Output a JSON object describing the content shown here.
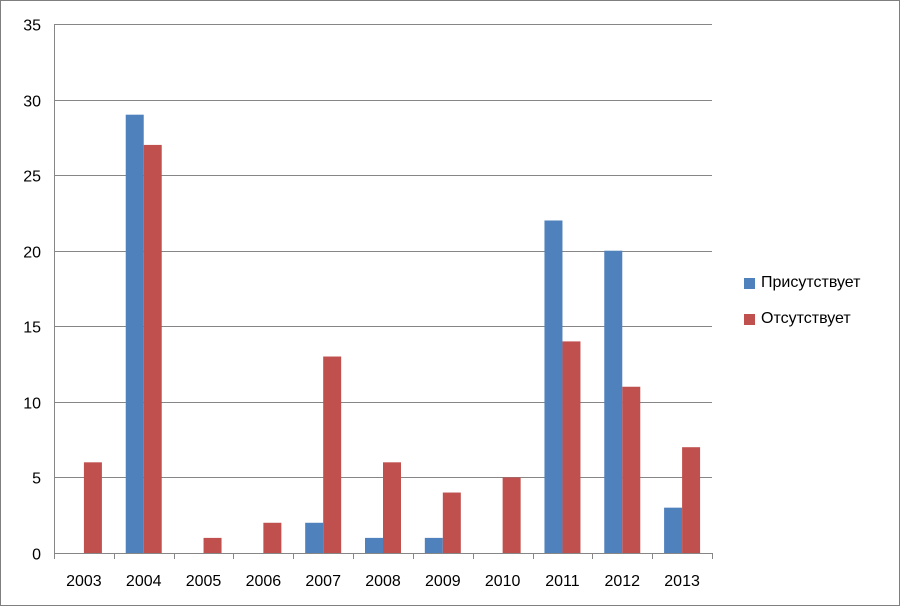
{
  "chart_data": {
    "type": "bar",
    "categories": [
      "2003",
      "2004",
      "2005",
      "2006",
      "2007",
      "2008",
      "2009",
      "2010",
      "2011",
      "2012",
      "2013"
    ],
    "series": [
      {
        "name": "Присутствует",
        "color": "#4f81bd",
        "values": [
          0,
          29,
          0,
          0,
          2,
          1,
          1,
          0,
          22,
          20,
          3
        ]
      },
      {
        "name": "Отсутствует",
        "color": "#c0504d",
        "values": [
          6,
          27,
          1,
          2,
          13,
          6,
          4,
          5,
          14,
          11,
          7
        ]
      }
    ],
    "ylim": [
      0,
      35
    ],
    "yticks": [
      0,
      5,
      10,
      15,
      20,
      25,
      30,
      35
    ],
    "grid": true,
    "legend_position": "right",
    "title": "",
    "xlabel": "",
    "ylabel": ""
  }
}
